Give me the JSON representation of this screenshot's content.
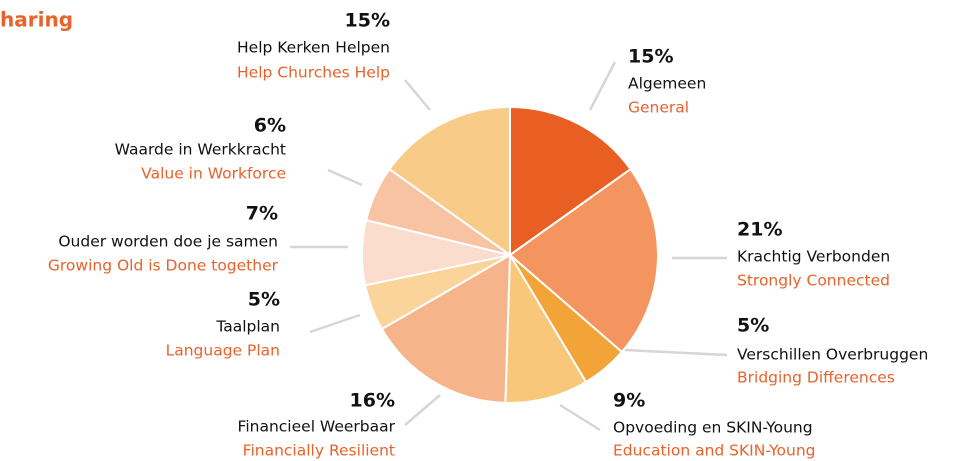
{
  "chart_data": {
    "type": "pie",
    "title": "haring",
    "categories": [
      "Algemeen",
      "Krachtig Verbonden",
      "Verschillen Overbruggen",
      "Opvoeding en SKIN-Young",
      "Financieel Weerbaar",
      "Taalplan",
      "Ouder worden doe je samen",
      "Waarde in Werkkracht",
      "Help Kerken Helpen"
    ],
    "categories_en": [
      "General",
      "Strongly Connected",
      "Bridging Differences",
      "Education and SKIN-Young",
      "Financially Resilient",
      "Language Plan",
      "Growing Old is Done together",
      "Value in Workforce",
      "Help Churches Help"
    ],
    "values": [
      15,
      21,
      5,
      9,
      16,
      5,
      7,
      6,
      15
    ],
    "value_labels": [
      "15%",
      "21%",
      "5%",
      "9%",
      "16%",
      "5%",
      "7%",
      "6%",
      "15%"
    ],
    "colors": [
      "#e95e23",
      "#f4955f",
      "#f2a438",
      "#f8c77a",
      "#f5b48a",
      "#fad49b",
      "#fcdccc",
      "#f8c3a3",
      "#f8cb88"
    ]
  }
}
